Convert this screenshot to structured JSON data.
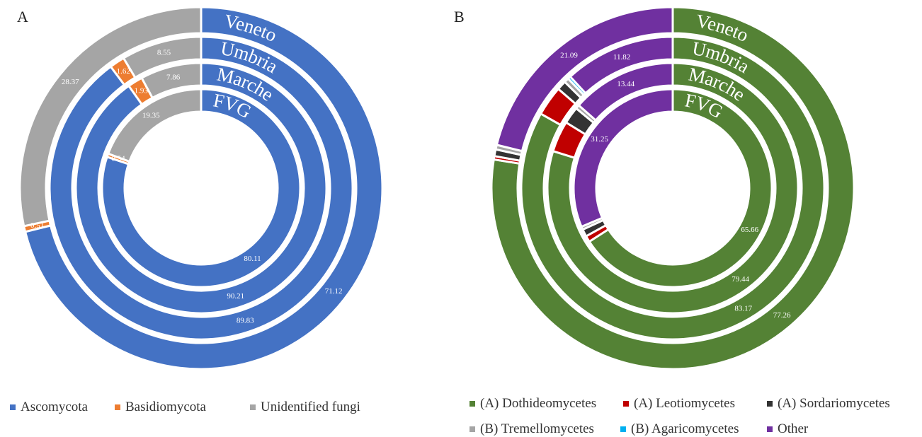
{
  "chart_data": [
    {
      "panel": "A",
      "type": "doughnut",
      "rings": [
        "FVG",
        "Marche",
        "Umbria",
        "Veneto"
      ],
      "series": [
        {
          "name": "Ascomycota",
          "color": "#4472C4",
          "values": [
            80.11,
            90.21,
            89.83,
            71.12
          ]
        },
        {
          "name": "Basidiomycota",
          "color": "#ED7D31",
          "values": [
            0.54,
            1.93,
            1.62,
            0.51
          ]
        },
        {
          "name": "Unidentified fungi",
          "color": "#A5A5A5",
          "values": [
            19.35,
            7.86,
            8.55,
            28.37
          ]
        }
      ],
      "data_labels": [
        {
          "text": "80.11",
          "ring": 0,
          "series": 0
        },
        {
          "text": "90.21",
          "ring": 1,
          "series": 0
        },
        {
          "text": "89.83",
          "ring": 2,
          "series": 0
        },
        {
          "text": "71.12",
          "ring": 3,
          "series": 0
        },
        {
          "text": "0.54",
          "ring": 0,
          "series": 1
        },
        {
          "text": "1.93",
          "ring": 1,
          "series": 1
        },
        {
          "text": "1.62",
          "ring": 2,
          "series": 1
        },
        {
          "text": "0.51",
          "ring": 3,
          "series": 1
        },
        {
          "text": "19.35",
          "ring": 0,
          "series": 2
        },
        {
          "text": "7.86",
          "ring": 1,
          "series": 2
        },
        {
          "text": "8.55",
          "ring": 2,
          "series": 2
        },
        {
          "text": "28.37",
          "ring": 3,
          "series": 2
        }
      ]
    },
    {
      "panel": "B",
      "type": "doughnut",
      "rings": [
        "FVG",
        "Marche",
        "Umbria",
        "Veneto"
      ],
      "series": [
        {
          "name": "(A) Dothideomycetes",
          "color": "#548235",
          "values": [
            65.66,
            79.44,
            83.17,
            77.26
          ]
        },
        {
          "name": "(A) Leotiomycetes",
          "color": "#C00000",
          "values": [
            1.0,
            4.0,
            3.2,
            0.3
          ]
        },
        {
          "name": "(A) Sordariomycetes",
          "color": "#333333",
          "values": [
            1.2,
            2.2,
            1.0,
            0.6
          ]
        },
        {
          "name": "(B) Tremellomycetes",
          "color": "#A5A5A5",
          "values": [
            0.5,
            0.5,
            0.5,
            0.4
          ]
        },
        {
          "name": "(B) Agaricomycetes",
          "color": "#00B0F0",
          "values": [
            0.0,
            0.0,
            0.3,
            0.0
          ]
        },
        {
          "name": "Other",
          "color": "#7030A0",
          "values": [
            31.25,
            13.44,
            11.82,
            21.09
          ]
        }
      ],
      "data_labels": [
        {
          "text": "65.66",
          "ring": 0,
          "series": 0
        },
        {
          "text": "79.44",
          "ring": 1,
          "series": 0
        },
        {
          "text": "83.17",
          "ring": 2,
          "series": 0
        },
        {
          "text": "77.26",
          "ring": 3,
          "series": 0
        },
        {
          "text": "31.25",
          "ring": 0,
          "series": 5
        },
        {
          "text": "13.44",
          "ring": 1,
          "series": 5
        },
        {
          "text": "11.82",
          "ring": 2,
          "series": 5
        },
        {
          "text": "21.09",
          "ring": 3,
          "series": 5
        }
      ]
    }
  ]
}
